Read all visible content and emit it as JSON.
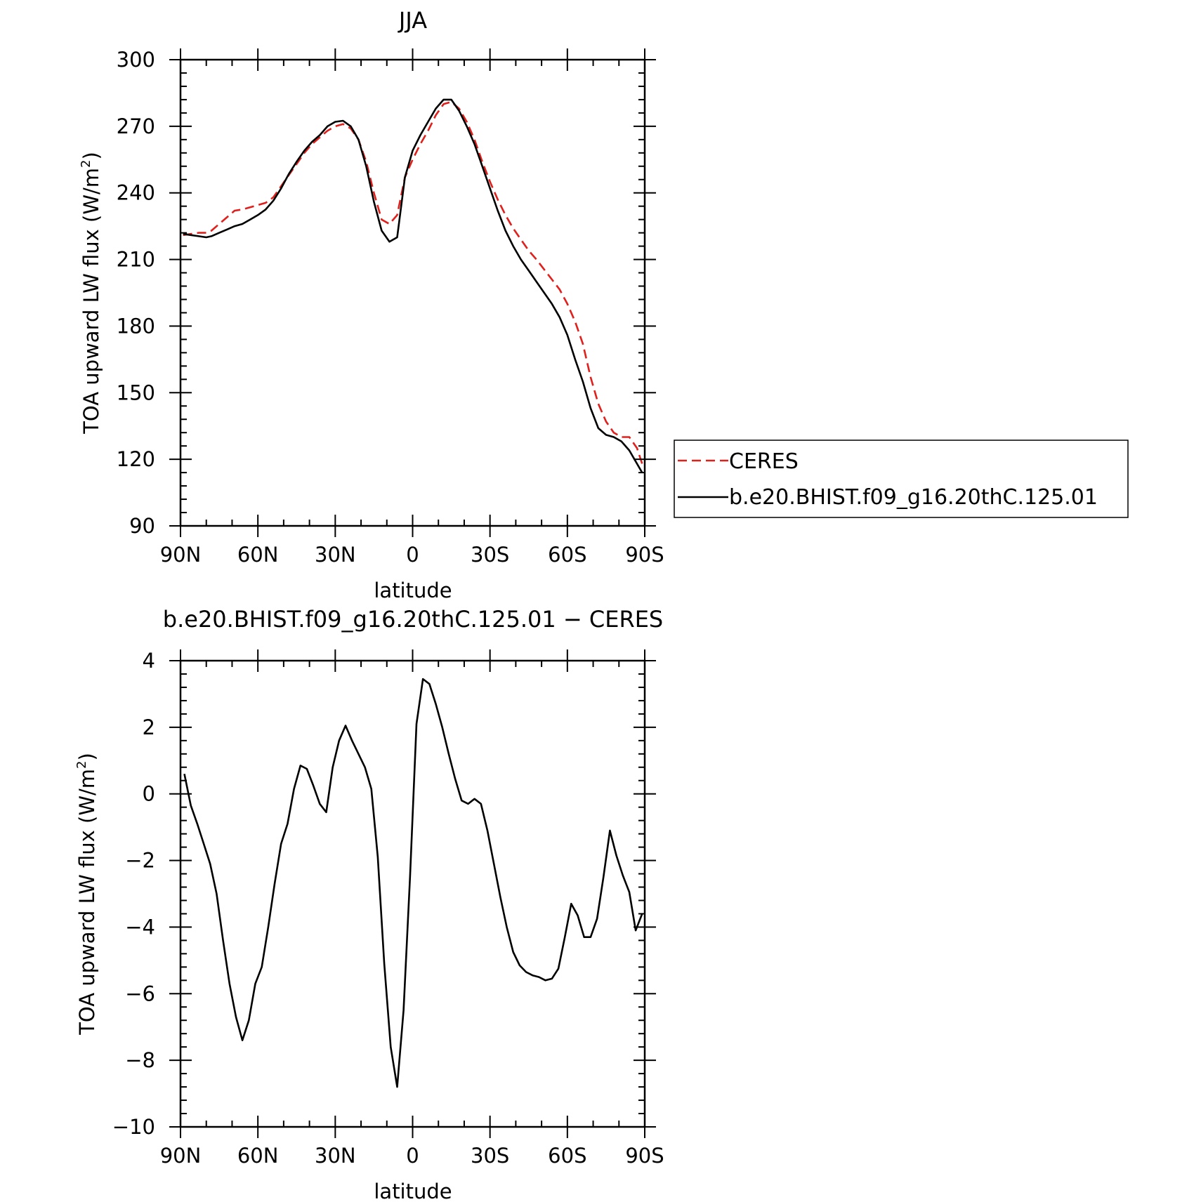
{
  "chart_data": [
    {
      "type": "line",
      "title": "JJA",
      "xlabel": "latitude",
      "ylabel": "TOA upward LW flux (W/m",
      "ylabel_sup": "2",
      "ylabel_close": ")",
      "xlim": [
        90,
        -90
      ],
      "ylim": [
        90,
        300
      ],
      "xticks": [
        90,
        60,
        30,
        0,
        -30,
        -60,
        -90
      ],
      "xtick_labels": [
        "90N",
        "60N",
        "30N",
        "0",
        "30S",
        "60S",
        "90S"
      ],
      "yticks": [
        90,
        120,
        150,
        180,
        210,
        240,
        270,
        300
      ],
      "ytick_labels": [
        "90",
        "120",
        "150",
        "180",
        "210",
        "240",
        "270",
        "300"
      ],
      "legend": {
        "placement": "right",
        "entries": [
          "CERES",
          "b.e20.BHIST.f09_g16.20thC.125.01"
        ]
      },
      "series": [
        {
          "name": "CERES",
          "color": "#e0201c",
          "dash": "dashed",
          "x": [
            89,
            86,
            83,
            80,
            78,
            75,
            72,
            69,
            66,
            63,
            60,
            57,
            54,
            51,
            48,
            45,
            42,
            39,
            36,
            33,
            30,
            27,
            24,
            21,
            18,
            15,
            12,
            9,
            6,
            3,
            0,
            -3,
            -6,
            -9,
            -12,
            -15,
            -18,
            -21,
            -24,
            -27,
            -30,
            -33,
            -36,
            -39,
            -42,
            -45,
            -48,
            -51,
            -54,
            -57,
            -60,
            -63,
            -66,
            -69,
            -72,
            -75,
            -78,
            -81,
            -84,
            -87,
            -89
          ],
          "y": [
            221,
            221.5,
            222,
            222,
            223,
            226,
            229,
            232,
            232.5,
            233.5,
            234.5,
            235.5,
            238,
            243,
            248,
            253,
            258,
            262,
            265,
            268,
            270,
            271,
            269,
            264,
            254,
            240,
            228,
            226,
            230,
            247,
            255,
            262,
            268,
            275,
            280,
            281,
            278,
            272,
            264,
            254,
            245,
            237,
            230,
            224,
            219,
            214,
            210,
            205.5,
            201,
            196.5,
            190,
            182,
            172,
            157,
            145,
            137,
            132,
            130,
            130,
            125,
            118
          ]
        },
        {
          "name": "b.e20.BHIST.f09_g16.20thC.125.01",
          "color": "#000000",
          "dash": "solid",
          "x": [
            89,
            86,
            83,
            80,
            78,
            75,
            72,
            69,
            66,
            63,
            60,
            57,
            54,
            51,
            48,
            45,
            42,
            39,
            36,
            33,
            30,
            27,
            24,
            21,
            18,
            15,
            12,
            9,
            6,
            3,
            0,
            -3,
            -6,
            -9,
            -12,
            -15,
            -18,
            -21,
            -24,
            -27,
            -30,
            -33,
            -36,
            -39,
            -42,
            -45,
            -48,
            -51,
            -54,
            -57,
            -60,
            -63,
            -66,
            -69,
            -72,
            -75,
            -78,
            -81,
            -84,
            -87,
            -89
          ],
          "y": [
            221.5,
            221,
            220.5,
            220,
            220.5,
            222,
            223.5,
            225,
            226,
            228,
            230,
            232.5,
            236.5,
            242,
            248.5,
            254,
            259,
            263,
            266,
            270,
            272,
            272.5,
            270,
            264,
            252,
            236,
            223,
            218,
            220,
            247,
            259,
            266,
            272,
            278,
            282,
            282,
            277,
            270,
            262,
            252,
            242,
            232,
            223,
            216,
            210,
            205,
            200,
            195,
            190,
            184,
            176,
            165,
            155,
            143,
            134,
            131,
            130,
            128,
            124,
            118,
            114
          ]
        }
      ]
    },
    {
      "type": "line",
      "title": "b.e20.BHIST.f09_g16.20thC.125.01 − CERES",
      "xlabel": "latitude",
      "ylabel": "TOA upward LW flux (W/m",
      "ylabel_sup": "2",
      "ylabel_close": ")",
      "xlim": [
        90,
        -90
      ],
      "ylim": [
        -10,
        4
      ],
      "xticks": [
        90,
        60,
        30,
        0,
        -30,
        -60,
        -90
      ],
      "xtick_labels": [
        "90N",
        "60N",
        "30N",
        "0",
        "30S",
        "60S",
        "90S"
      ],
      "yticks": [
        4,
        2,
        0,
        -2,
        -4,
        -6,
        -8,
        -10
      ],
      "ytick_labels": [
        "4",
        "2",
        "0",
        "−2",
        "−4",
        "−6",
        "−8",
        "−10"
      ],
      "series": [
        {
          "color": "#000000",
          "dash": "solid",
          "x": [
            88.5,
            86,
            83.5,
            81,
            78.5,
            76,
            73.5,
            71,
            68.5,
            66,
            63.5,
            61,
            58.5,
            56,
            53.5,
            51,
            48.5,
            46,
            43.5,
            41,
            38.5,
            36,
            33.5,
            31,
            28.5,
            26,
            23.5,
            21,
            18.5,
            16,
            13.5,
            11,
            8.5,
            6,
            3.5,
            1,
            -1.5,
            -4,
            -6.5,
            -9,
            -11.5,
            -14,
            -16.5,
            -19,
            -21.5,
            -24,
            -26.5,
            -29,
            -31.5,
            -34,
            -36.5,
            -39,
            -41.5,
            -44,
            -46.5,
            -49,
            -51.5,
            -54,
            -56.5,
            -59,
            -61.5,
            -64,
            -66.5,
            -69,
            -71.5,
            -74,
            -76.5,
            -79,
            -81.5,
            -84,
            -86.5,
            -89
          ],
          "y": [
            0.6,
            -0.35,
            -0.9,
            -1.5,
            -2.1,
            -3.0,
            -4.4,
            -5.7,
            -6.7,
            -7.4,
            -6.8,
            -5.7,
            -5.2,
            -4.0,
            -2.7,
            -1.5,
            -0.9,
            0.15,
            0.85,
            0.75,
            0.25,
            -0.3,
            -0.55,
            0.8,
            1.6,
            2.05,
            1.6,
            1.2,
            0.8,
            0.15,
            -1.9,
            -5.1,
            -7.6,
            -8.8,
            -6.5,
            -2.5,
            2.1,
            3.45,
            3.3,
            2.7,
            2.0,
            1.2,
            0.45,
            -0.2,
            -0.3,
            -0.15,
            -0.3,
            -1.1,
            -2.1,
            -3.1,
            -4.0,
            -4.75,
            -5.15,
            -5.35,
            -5.45,
            -5.5,
            -5.6,
            -5.55,
            -5.25,
            -4.3,
            -3.3,
            -3.65,
            -4.3,
            -4.3,
            -3.75,
            -2.5,
            -1.1,
            -1.85,
            -2.45,
            -2.95,
            -4.1,
            -3.6
          ]
        }
      ]
    }
  ]
}
